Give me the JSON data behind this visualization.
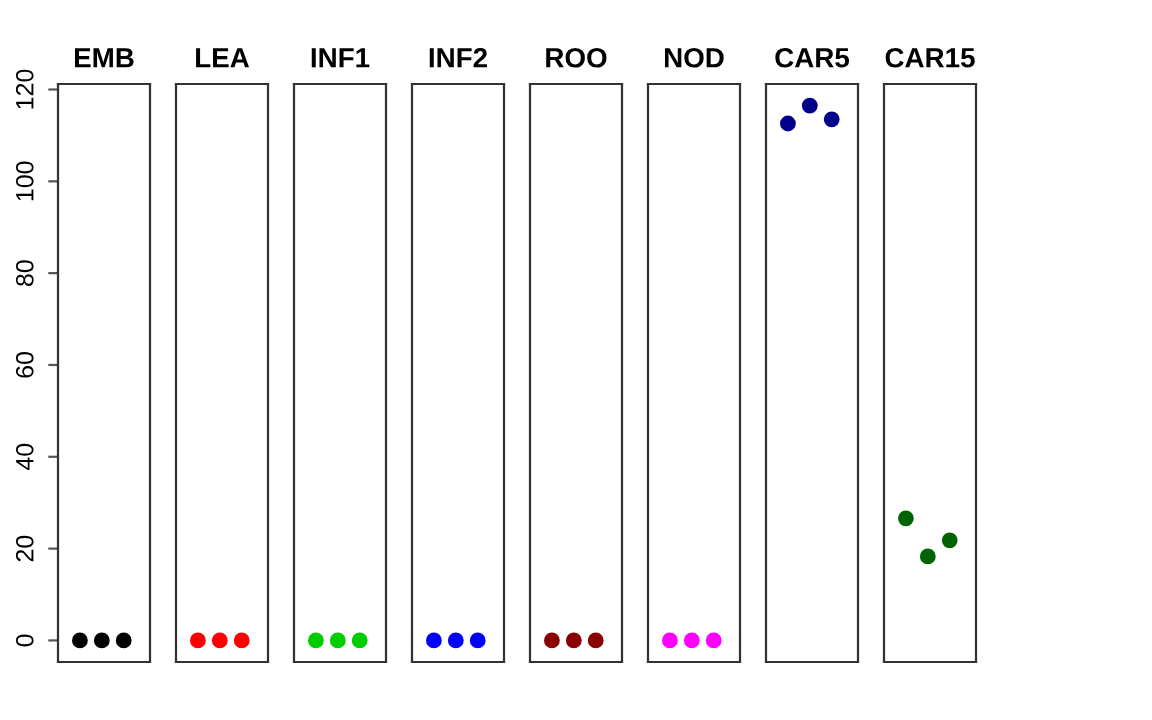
{
  "chart_data": {
    "type": "scatter",
    "categories": [
      "EMB",
      "LEA",
      "INF1",
      "INF2",
      "ROO",
      "NOD",
      "CAR5",
      "CAR15"
    ],
    "series": [
      {
        "values": [
          0,
          0,
          0,
          0,
          0,
          0,
          112.6,
          26.6
        ],
        "colors": [
          "#000000",
          "#ff0000",
          "#00cd00",
          "#0000ff",
          "#8b0000",
          "#ff00ff",
          "#00008b",
          "#006400"
        ]
      },
      {
        "values": [
          0,
          0,
          0,
          0,
          0,
          0,
          116.5,
          18.3
        ],
        "colors": [
          "#000000",
          "#ff0000",
          "#00cd00",
          "#0000ff",
          "#8b0000",
          "#ff00ff",
          "#00008b",
          "#006400"
        ]
      },
      {
        "values": [
          0,
          0,
          0,
          0,
          0,
          0,
          113.5,
          21.8
        ],
        "colors": [
          "#000000",
          "#ff0000",
          "#00cd00",
          "#0000ff",
          "#8b0000",
          "#ff00ff",
          "#00008b",
          "#006400"
        ]
      }
    ],
    "ylim": [
      -4.7,
      121.2
    ],
    "yticks": [
      0,
      20,
      40,
      60,
      80,
      100,
      120
    ],
    "marker": "circle"
  }
}
